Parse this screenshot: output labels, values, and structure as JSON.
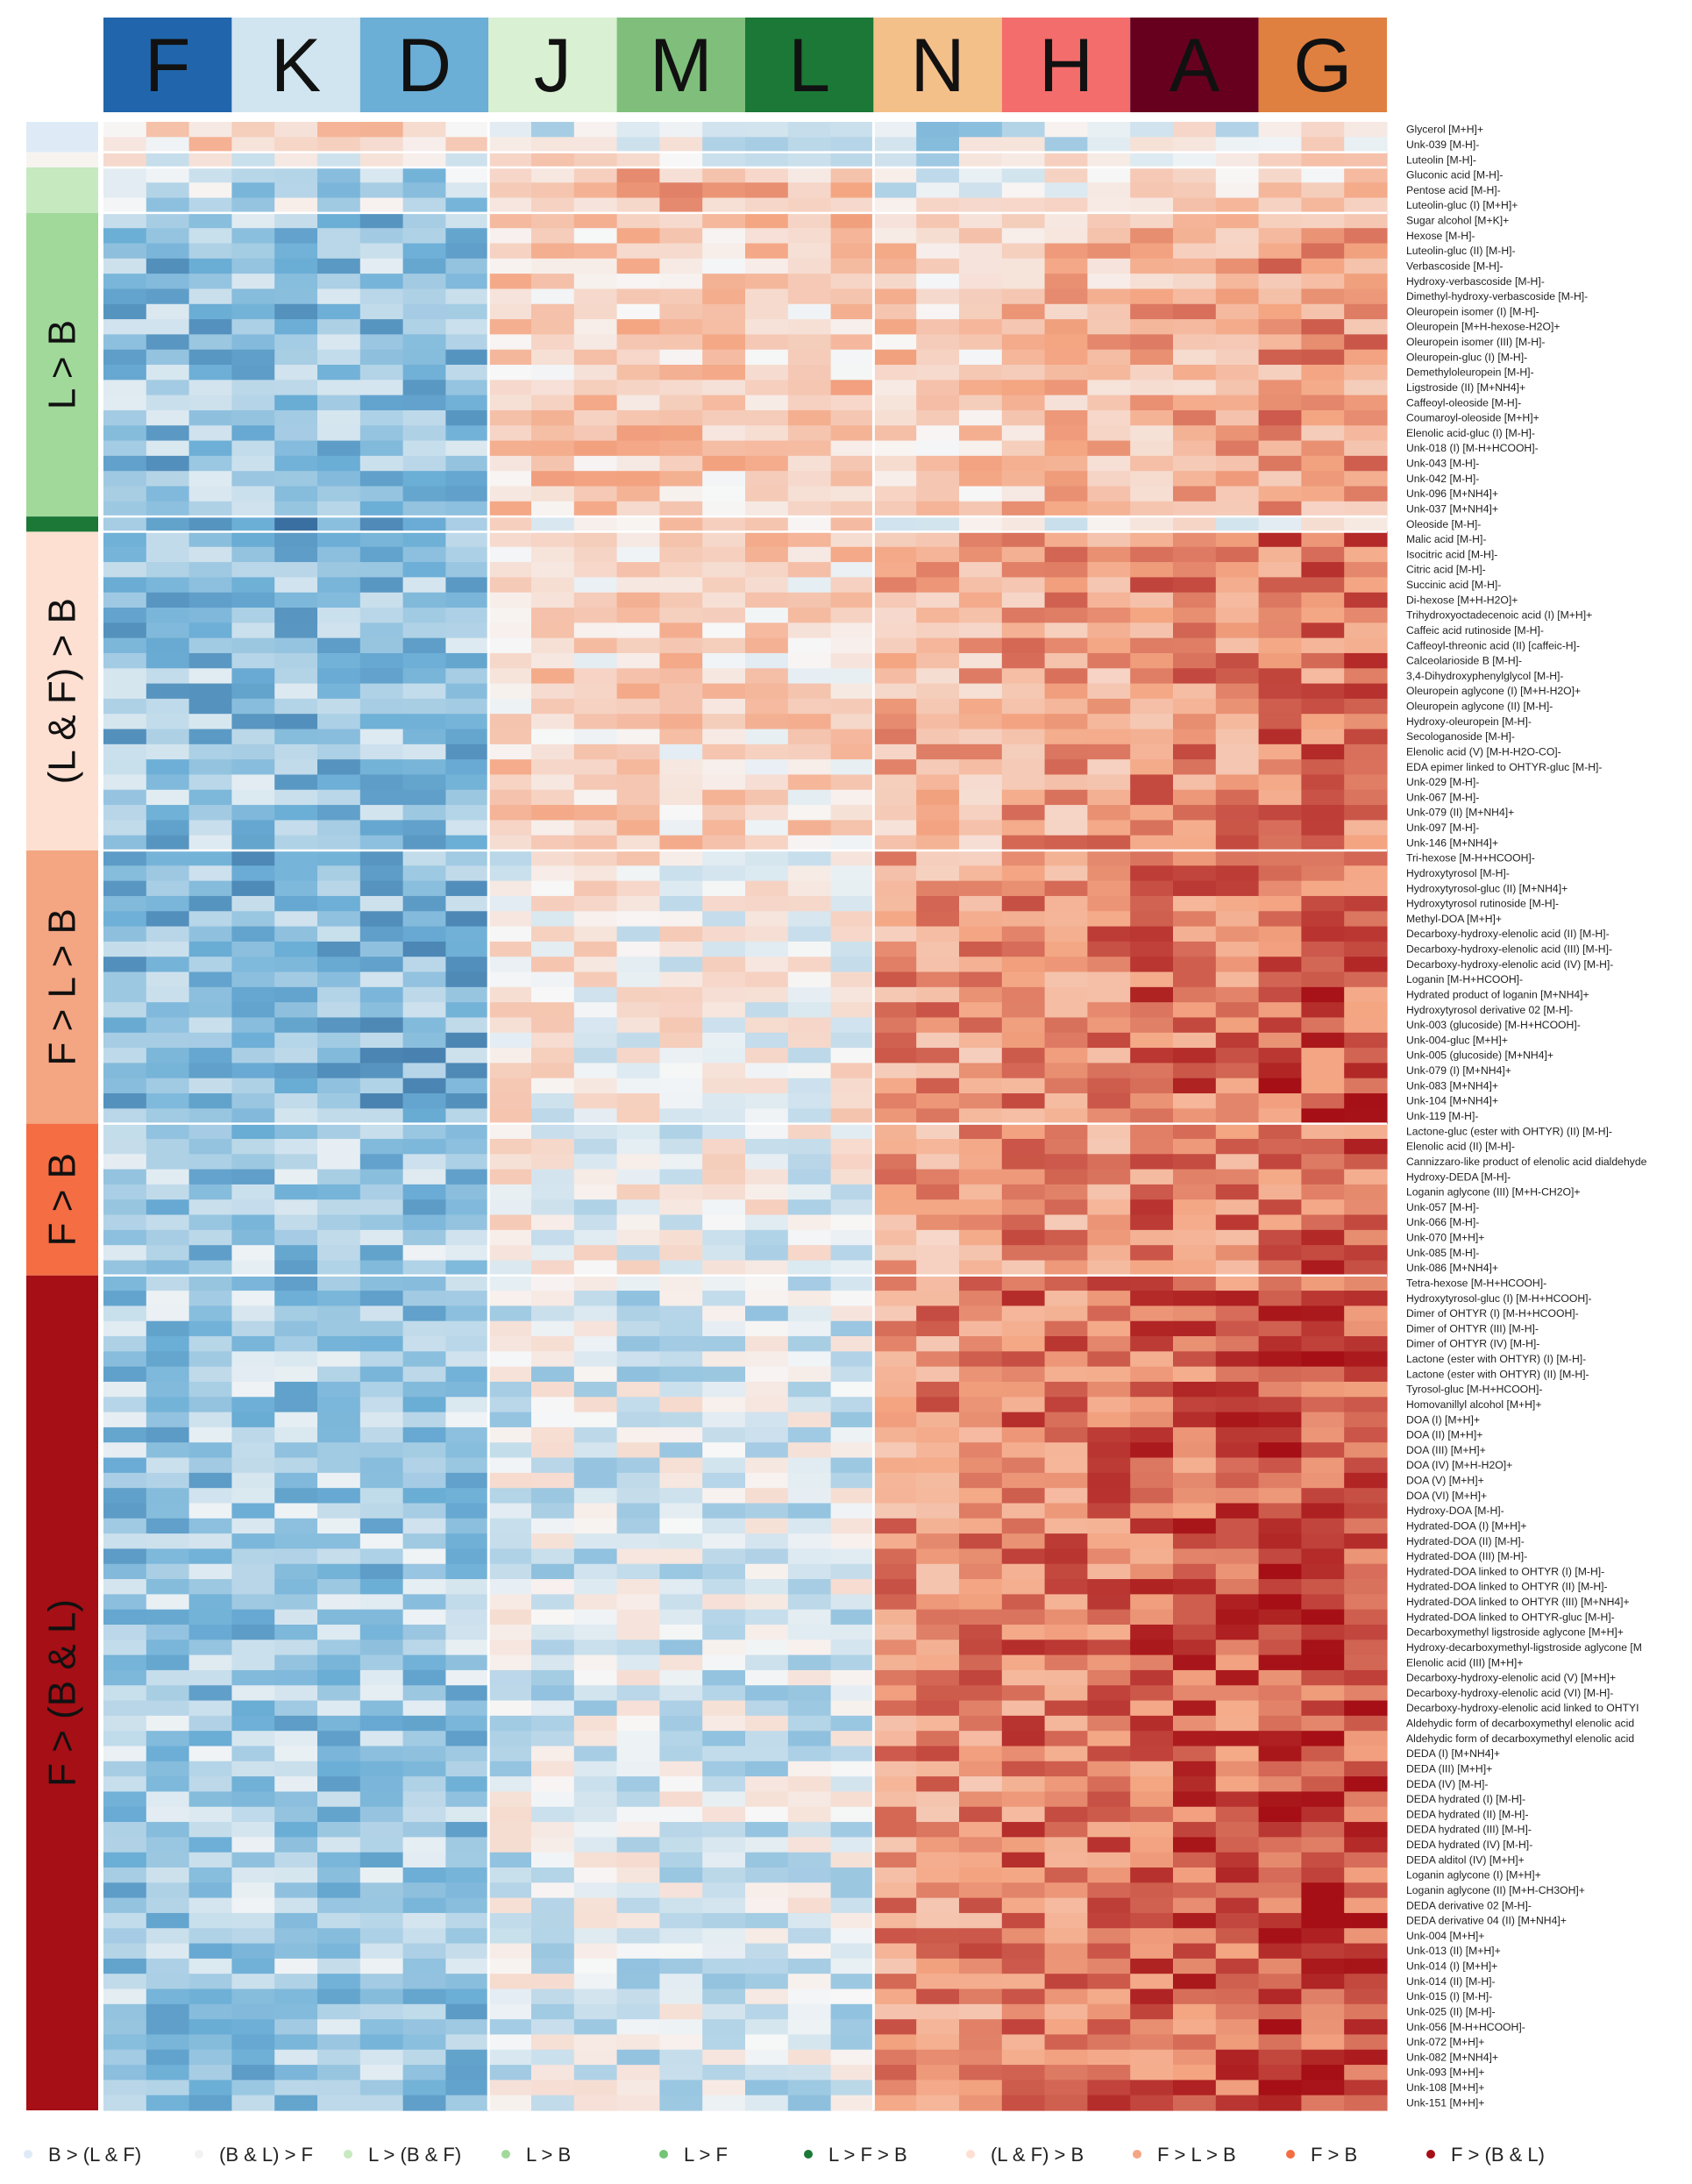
{
  "chart_data": {
    "type": "heatmap",
    "color_scale": {
      "low": "#08306b",
      "mid": "#f7f7f7",
      "high": "#a50f15"
    },
    "groups": [
      {
        "label": "F",
        "color": "#2166ac",
        "text_color": "#111111"
      },
      {
        "label": "K",
        "color": "#d1e5f0",
        "text_color": "#111111"
      },
      {
        "label": "D",
        "color": "#6baed6",
        "text_color": "#111111"
      },
      {
        "label": "J",
        "color": "#d9f0d3",
        "text_color": "#111111"
      },
      {
        "label": "M",
        "color": "#7fbf7b",
        "text_color": "#111111"
      },
      {
        "label": "L",
        "color": "#1b7837",
        "text_color": "#111111"
      },
      {
        "label": "N",
        "color": "#f4c08a",
        "text_color": "#111111"
      },
      {
        "label": "H",
        "color": "#f46d6d",
        "text_color": "#111111"
      },
      {
        "label": "A",
        "color": "#67001f",
        "text_color": "#111111"
      },
      {
        "label": "G",
        "color": "#e08040",
        "text_color": "#111111"
      }
    ],
    "rows": [
      "Glycerol [M+H]+",
      "Unk-039 [M-H]-",
      "Luteolin [M-H]-",
      "Gluconic acid [M-H]-",
      "Pentose acid [M-H]-",
      "Luteolin-gluc (I) [M+H]+",
      "Sugar alcohol [M+K]+",
      "Hexose [M-H]-",
      "Luteolin-gluc (II) [M-H]-",
      "Verbascoside [M-H]-",
      "Hydroxy-verbascoside [M-H]-",
      "Dimethyl-hydroxy-verbascoside [M-H]-",
      "Oleuropein isomer (I) [M-H]-",
      "Oleuropein [M+H-hexose-H2O]+",
      "Oleuropein isomer (III) [M-H]-",
      "Oleuropein-gluc (I) [M-H]-",
      "Demethyloleuropein [M-H]-",
      "Ligstroside (II) [M+NH4]+",
      "Caffeoyl-oleoside [M-H]-",
      "Coumaroyl-oleoside [M+H]+",
      "Elenolic acid-gluc (I) [M-H]-",
      "Unk-018 (I) [M-H+HCOOH]-",
      "Unk-043 [M-H]-",
      "Unk-042 [M-H]-",
      "Unk-096 [M+NH4]+",
      "Unk-037 [M+NH4]+",
      "Oleoside [M-H]-",
      "Malic acid [M-H]-",
      "Isocitric acid [M-H]-",
      "Citric acid [M-H]-",
      "Succinic acid [M-H]-",
      "Di-hexose [M+H-H2O]+",
      "Trihydroxyoctadecenoic acid (I) [M+H]+",
      "Caffeic acid rutinoside [M-H]-",
      "Caffeoyl-threonic acid (II) [caffeic-H]-",
      "Calceolarioside B [M-H]-",
      "3,4-Dihydroxyphenylglycol [M-H]-",
      "Oleuropein aglycone (I) [M+H-H2O]+",
      "Oleuropein aglycone (II) [M-H]-",
      "Hydroxy-oleuropein [M-H]-",
      "Secologanoside [M-H]-",
      "Elenolic acid (V) [M-H-H2O-CO]-",
      "EDA epimer linked to OHTYR-gluc [M-H]-",
      "Unk-029 [M-H]-",
      "Unk-067 [M-H]-",
      "Unk-079 (II) [M+NH4]+",
      "Unk-097 [M-H]-",
      "Unk-146 [M+NH4]+",
      "Tri-hexose [M-H+HCOOH]-",
      "Hydroxytyrosol [M-H]-",
      "Hydroxytyrosol-gluc (II) [M+NH4]+",
      "Hydroxytyrosol rutinoside [M-H]-",
      "Methyl-DOA [M+H]+",
      "Decarboxy-hydroxy-elenolic acid (II) [M-H]-",
      "Decarboxy-hydroxy-elenolic acid (III) [M-H]-",
      "Decarboxy-hydroxy-elenolic acid (IV) [M-H]-",
      "Loganin [M-H+HCOOH]-",
      "Hydrated product of loganin [M+NH4]+",
      "Hydroxytyrosol derivative 02 [M-H]-",
      "Unk-003 (glucoside) [M-H+HCOOH]-",
      "Unk-004-gluc [M+H]+",
      "Unk-005 (glucoside) [M+NH4]+",
      "Unk-079 (I) [M+NH4]+",
      "Unk-083 [M+NH4]+",
      "Unk-104 [M+NH4]+",
      "Unk-119 [M-H]-",
      "Lactone-gluc (ester with OHTYR) (II) [M-H]-",
      "Elenolic acid (II) [M-H]-",
      "Cannizzaro-like product of elenolic acid dialdehyde",
      "Hydroxy-DEDA [M-H]-",
      "Loganin aglycone (III) [M+H-CH2O]+",
      "Unk-057 [M-H]-",
      "Unk-066 [M-H]-",
      "Unk-070 [M+H]+",
      "Unk-085 [M-H]-",
      "Unk-086 [M+NH4]+",
      "Tetra-hexose [M-H+HCOOH]-",
      "Hydroxytyrosol-gluc (I) [M-H+HCOOH]-",
      "Dimer of OHTYR (I) [M-H+HCOOH]-",
      "Dimer of OHTYR (III) [M-H]-",
      "Dimer of OHTYR (IV) [M-H]-",
      "Lactone (ester with OHTYR) (I) [M-H]-",
      "Lactone (ester with OHTYR) (II) [M-H]-",
      "Tyrosol-gluc [M-H+HCOOH]-",
      "Homovanillyl alcohol [M+H]+",
      "DOA (I) [M+H]+",
      "DOA (II) [M+H]+",
      "DOA (III) [M+H]+",
      "DOA (IV) [M+H-H2O]+",
      "DOA (V) [M+H]+",
      "DOA (VI) [M+H]+",
      "Hydroxy-DOA [M-H]-",
      "Hydrated-DOA (I) [M+H]+",
      "Hydrated-DOA (II) [M-H]-",
      "Hydrated-DOA (III) [M-H]-",
      "Hydrated-DOA linked to OHTYR (I) [M-H]-",
      "Hydrated-DOA linked to OHTYR (II) [M-H]-",
      "Hydrated-DOA linked to OHTYR (III) [M+NH4]+",
      "Hydrated-DOA linked to OHTYR-gluc [M-H]-",
      "Decarboxymethyl ligstroside aglycone [M+H]+",
      "Hydroxy-decarboxymethyl-ligstroside aglycone [M",
      "Elenolic acid (III) [M+H]+",
      "Decarboxy-hydroxy-elenolic acid (V) [M+H]+",
      "Decarboxy-hydroxy-elenolic acid (VI) [M-H]-",
      "Decarboxy-hydroxy-elenolic acid linked to OHTYI",
      "Aldehydic form of decarboxymethyl elenolic acid",
      "Aldehydic form of decarboxymethyl elenolic acid",
      "DEDA (I) [M+NH4]+",
      "DEDA (III) [M+H]+",
      "DEDA (IV) [M-H]-",
      "DEDA hydrated (I) [M-H]-",
      "DEDA hydrated (II) [M-H]-",
      "DEDA hydrated (III) [M-H]-",
      "DEDA hydrated (IV) [M-H]-",
      "DEDA alditol (IV) [M+H]+",
      "Loganin aglycone (I) [M+H]+",
      "Loganin aglycone (II) [M+H-CH3OH]+",
      "DEDA derivative 02 [M-H]-",
      "DEDA derivative 04 (II) [M+NH4]+",
      "Unk-004 [M+H]+",
      "Unk-013 (II) [M+H]+",
      "Unk-014 (I) [M+H]+",
      "Unk-014 (II) [M-H]-",
      "Unk-015 (I) [M-H]-",
      "Unk-025 (II) [M-H]-",
      "Unk-056 [M-H+HCOOH]-",
      "Unk-072 [M+H]+",
      "Unk-082 [M+NH4]+",
      "Unk-093 [M+H]+",
      "Unk-108 [M+H]+",
      "Unk-151 [M+H]+"
    ],
    "clusters": [
      {
        "label": "",
        "color": "#deebf7",
        "rows": [
          0,
          1
        ]
      },
      {
        "label": "",
        "color": "#f7f4f0",
        "rows": [
          2,
          2
        ]
      },
      {
        "label": "",
        "color": "#c7e9c0",
        "rows": [
          3,
          5
        ]
      },
      {
        "label": "L > B",
        "color": "#a1d99b",
        "rows": [
          6,
          25
        ]
      },
      {
        "label": "",
        "color": "#1b7837",
        "rows": [
          26,
          26
        ]
      },
      {
        "label": "(L & F) > B",
        "color": "#fde0d2",
        "rows": [
          27,
          47
        ]
      },
      {
        "label": "F > L > B",
        "color": "#f4a582",
        "rows": [
          48,
          65
        ]
      },
      {
        "label": "F > B",
        "color": "#f46d43",
        "rows": [
          66,
          75
        ]
      },
      {
        "label": "F > (B & L)",
        "color": "#a50f15",
        "rows": [
          76,
          130
        ]
      }
    ],
    "legend": [
      {
        "label": "B > (L & F)",
        "color": "#deebf7"
      },
      {
        "label": "(B & L) > F",
        "color": "#f2f2f2"
      },
      {
        "label": "L > (B & F)",
        "color": "#c7e9c0"
      },
      {
        "label": "L > B",
        "color": "#a1d99b"
      },
      {
        "label": "L > F",
        "color": "#74c476"
      },
      {
        "label": "L > F > B",
        "color": "#1b7837"
      },
      {
        "label": "(L & F) > B",
        "color": "#fde0d2"
      },
      {
        "label": "F > L > B",
        "color": "#f4a582"
      },
      {
        "label": "F > B",
        "color": "#f46d43"
      },
      {
        "label": "F > (B & L)",
        "color": "#a50f15"
      }
    ]
  }
}
